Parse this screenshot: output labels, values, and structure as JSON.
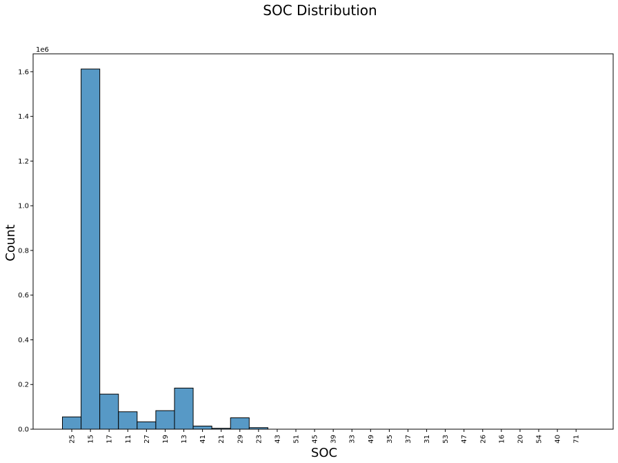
{
  "chart_data": {
    "type": "bar",
    "title": "SOC Distribution",
    "xlabel": "SOC",
    "ylabel": "Count",
    "y_offset_label": "1e6",
    "ylim": [
      0,
      1.68
    ],
    "yticks": [
      0.0,
      0.2,
      0.4,
      0.6,
      0.8,
      1.0,
      1.2,
      1.4,
      1.6
    ],
    "ytick_labels": [
      "0.0",
      "0.2",
      "0.4",
      "0.6",
      "0.8",
      "1.0",
      "1.2",
      "1.4",
      "1.6"
    ],
    "grid": false,
    "bar_color": "#5799c6",
    "categories": [
      "25",
      "15",
      "17",
      "11",
      "27",
      "19",
      "13",
      "41",
      "21",
      "29",
      "23",
      "43",
      "51",
      "45",
      "39",
      "33",
      "49",
      "35",
      "37",
      "31",
      "53",
      "47",
      "26",
      "16",
      "20",
      "54",
      "40",
      "71"
    ],
    "values": [
      0.055,
      1.612,
      0.157,
      0.078,
      0.033,
      0.083,
      0.184,
      0.014,
      0.004,
      0.051,
      0.007,
      0,
      0,
      0,
      0,
      0,
      0,
      0,
      0,
      0,
      0,
      0,
      0,
      0,
      0,
      0,
      0,
      0
    ]
  }
}
